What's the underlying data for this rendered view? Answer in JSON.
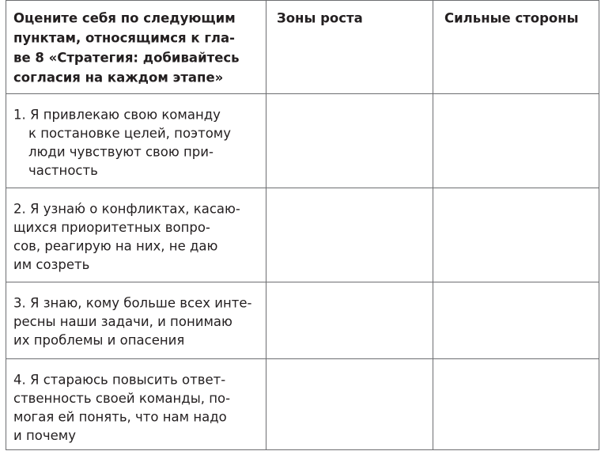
{
  "table": {
    "header": [
      [
        "Оцените себя по следующим",
        "пунктам, относящимся к гла-",
        "ве 8 «Стратегия: добивайтесь",
        "согласия на каждом этапе»"
      ],
      "Зоны роста",
      "Сильные стороны"
    ],
    "rows": [
      [
        "1. Я привлекаю свою команду",
        "к постановке целей, поэтому",
        "люди чувствуют свою при-",
        "частность"
      ],
      [
        "2. Я узнаю́ о конфликтах, касаю-",
        "щихся приоритетных вопро-",
        "сов, реагирую на них, не даю",
        "им созреть"
      ],
      [
        "3. Я знаю, кому больше всех инте-",
        "ресны наши задачи, и понимаю",
        "их проблемы и опасения"
      ],
      [
        "4. Я стараюсь повысить ответ-",
        "ственность своей команды, по-",
        "могая ей понять, что нам надо",
        "и почему"
      ]
    ]
  }
}
